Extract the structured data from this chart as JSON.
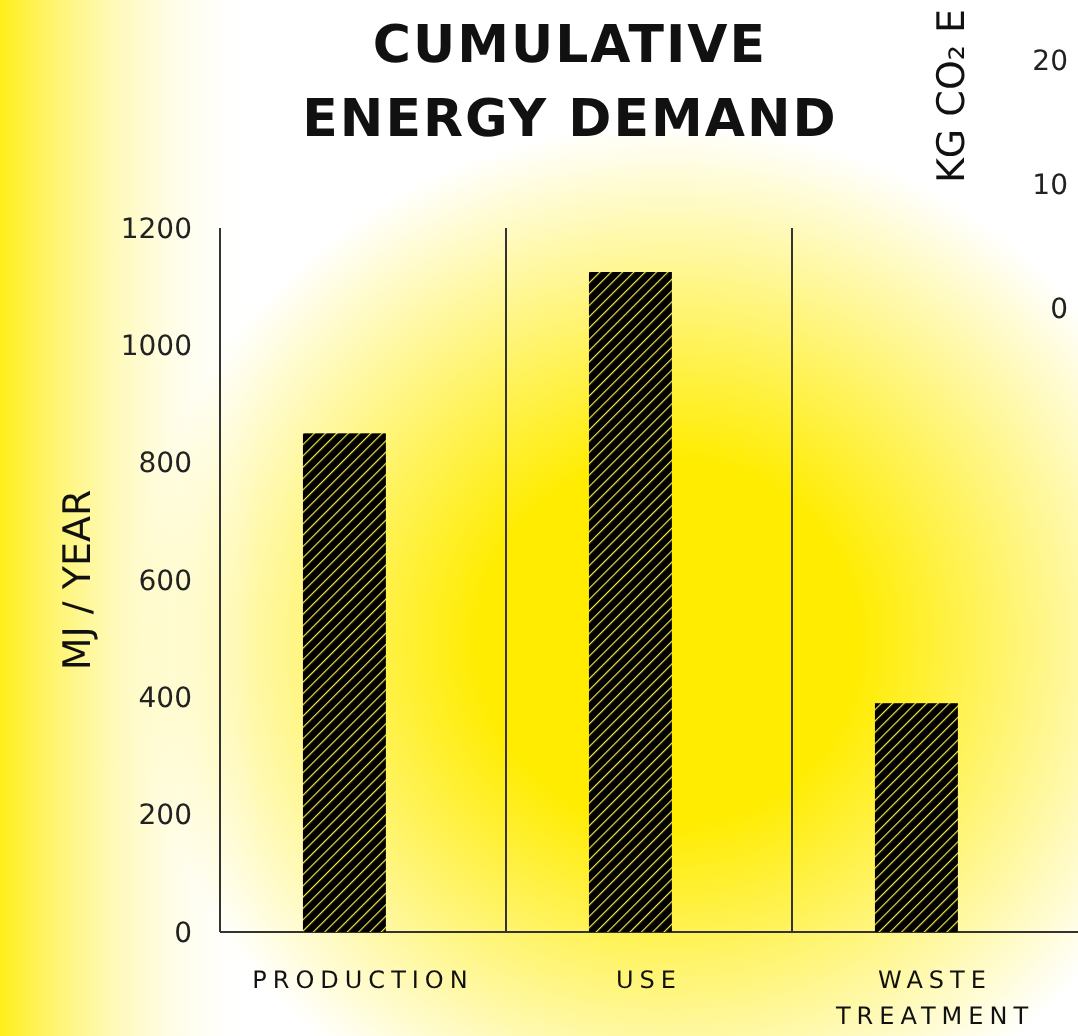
{
  "chart_data": [
    {
      "type": "bar",
      "title": "CUMULATIVE ENERGY DEMAND",
      "ylabel": "MJ / YEAR",
      "categories": [
        "PRODUCTION",
        "USE",
        "WASTE TREATMENT"
      ],
      "values": [
        850,
        1125,
        390
      ],
      "color": "#000000",
      "ylim": [
        0,
        1200
      ],
      "yticks": [
        0,
        200,
        400,
        600,
        800,
        1000,
        1200
      ],
      "grid": "x"
    },
    {
      "type": "other",
      "ylabel": "KG CO₂ E",
      "annotations": [
        "20",
        "10",
        "0"
      ]
    }
  ]
}
